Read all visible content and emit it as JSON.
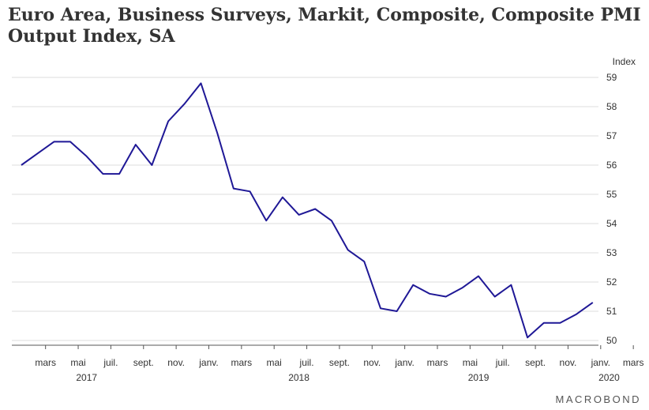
{
  "chart_data": {
    "type": "line",
    "title": "Euro Area, Business Surveys, Markit, Composite, Composite PMI Output Index, SA",
    "ylabel": "Index",
    "ylim": [
      50,
      59
    ],
    "yticks": [
      50,
      51,
      52,
      53,
      54,
      55,
      56,
      57,
      58,
      59
    ],
    "grid": true,
    "legend": "none",
    "x_tick_labels": [
      {
        "month": "2017-03",
        "label": "mars"
      },
      {
        "month": "2017-05",
        "label": "mai"
      },
      {
        "month": "2017-07",
        "label": "juil."
      },
      {
        "month": "2017-09",
        "label": "sept."
      },
      {
        "month": "2017-11",
        "label": "nov."
      },
      {
        "month": "2018-01",
        "label": "janv."
      },
      {
        "month": "2018-03",
        "label": "mars"
      },
      {
        "month": "2018-05",
        "label": "mai"
      },
      {
        "month": "2018-07",
        "label": "juil."
      },
      {
        "month": "2018-09",
        "label": "sept."
      },
      {
        "month": "2018-11",
        "label": "nov."
      },
      {
        "month": "2019-01",
        "label": "janv."
      },
      {
        "month": "2019-03",
        "label": "mars"
      },
      {
        "month": "2019-05",
        "label": "mai"
      },
      {
        "month": "2019-07",
        "label": "juil."
      },
      {
        "month": "2019-09",
        "label": "sept."
      },
      {
        "month": "2019-11",
        "label": "nov."
      },
      {
        "month": "2020-01",
        "label": "janv."
      },
      {
        "month": "2020-03",
        "label": "mars"
      }
    ],
    "year_labels": [
      {
        "center_month": "2017-06",
        "label": "2017"
      },
      {
        "center_month": "2018-07",
        "label": "2018"
      },
      {
        "center_month": "2019-06",
        "label": "2019"
      },
      {
        "center_month": "2020-02",
        "label": "2020"
      }
    ],
    "series": [
      {
        "color": "#1f1896",
        "points": [
          {
            "x": "2017-02",
            "y": 56.0
          },
          {
            "x": "2017-03",
            "y": 56.4
          },
          {
            "x": "2017-04",
            "y": 56.8
          },
          {
            "x": "2017-05",
            "y": 56.8
          },
          {
            "x": "2017-06",
            "y": 56.3
          },
          {
            "x": "2017-07",
            "y": 55.7
          },
          {
            "x": "2017-08",
            "y": 55.7
          },
          {
            "x": "2017-09",
            "y": 56.7
          },
          {
            "x": "2017-10",
            "y": 56.0
          },
          {
            "x": "2017-11",
            "y": 57.5
          },
          {
            "x": "2017-12",
            "y": 58.1
          },
          {
            "x": "2018-01",
            "y": 58.8
          },
          {
            "x": "2018-02",
            "y": 57.1
          },
          {
            "x": "2018-03",
            "y": 55.2
          },
          {
            "x": "2018-04",
            "y": 55.1
          },
          {
            "x": "2018-05",
            "y": 54.1
          },
          {
            "x": "2018-06",
            "y": 54.9
          },
          {
            "x": "2018-07",
            "y": 54.3
          },
          {
            "x": "2018-08",
            "y": 54.5
          },
          {
            "x": "2018-09",
            "y": 54.1
          },
          {
            "x": "2018-10",
            "y": 53.1
          },
          {
            "x": "2018-11",
            "y": 52.7
          },
          {
            "x": "2018-12",
            "y": 51.1
          },
          {
            "x": "2019-01",
            "y": 51.0
          },
          {
            "x": "2019-02",
            "y": 51.9
          },
          {
            "x": "2019-03",
            "y": 51.6
          },
          {
            "x": "2019-04",
            "y": 51.5
          },
          {
            "x": "2019-05",
            "y": 51.8
          },
          {
            "x": "2019-06",
            "y": 52.2
          },
          {
            "x": "2019-07",
            "y": 51.5
          },
          {
            "x": "2019-08",
            "y": 51.9
          },
          {
            "x": "2019-09",
            "y": 50.1
          },
          {
            "x": "2019-10",
            "y": 50.6
          },
          {
            "x": "2019-11",
            "y": 50.6
          },
          {
            "x": "2019-12",
            "y": 50.9
          },
          {
            "x": "2020-01",
            "y": 51.3
          }
        ]
      }
    ]
  },
  "branding": {
    "logo_text": "MACROBOND"
  }
}
